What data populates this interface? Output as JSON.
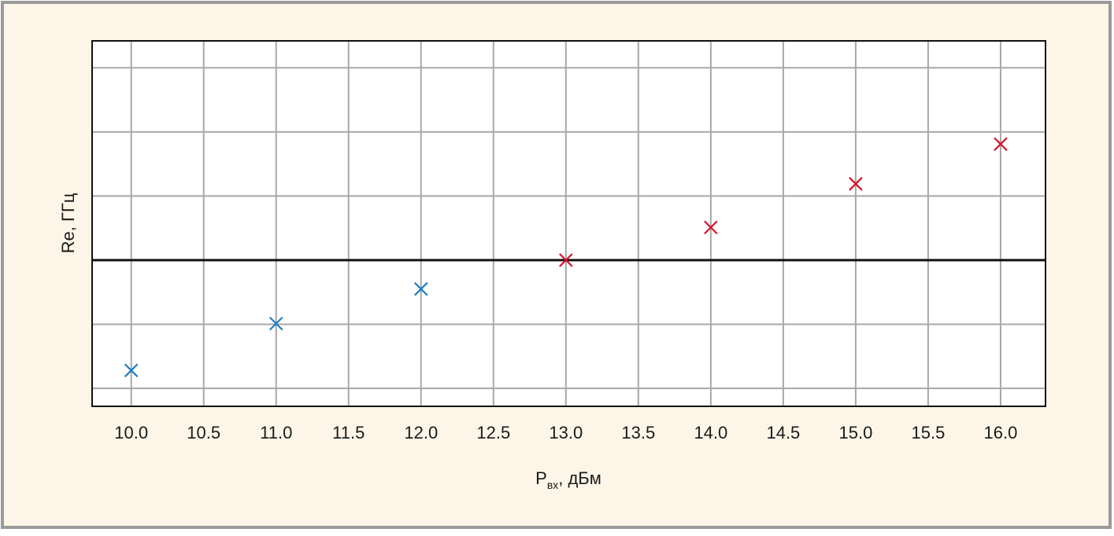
{
  "chart_data": {
    "type": "scatter",
    "x_label": {
      "main": "P",
      "sub": "вх",
      "rest": ", дБм"
    },
    "y_label": "Re, ГГц",
    "series": [
      {
        "color": "#1f7fc4",
        "x": [
          10,
          11,
          12
        ],
        "values": [
          -1.72,
          -0.99,
          -0.45
        ]
      },
      {
        "color": "#d8102c",
        "x": [
          13,
          14,
          15,
          16
        ],
        "values": [
          0,
          0.51,
          1.19,
          1.81
        ]
      }
    ],
    "xlim": [
      9.73,
      16.31
    ],
    "xticks": [
      {
        "value": 10,
        "label": "10.0"
      },
      10.5,
      {
        "value": 11,
        "label": "11.0"
      },
      11.5,
      {
        "value": 12,
        "label": "12.0"
      },
      12.5,
      {
        "value": 13,
        "label": "13.0"
      },
      13.5,
      {
        "value": 14,
        "label": "14.0"
      },
      14.5,
      {
        "value": 15,
        "label": "15.0"
      },
      15.5,
      {
        "value": 16,
        "label": "16.0"
      }
    ],
    "ylim": [
      -2.28,
      3.42
    ],
    "yticks": [
      -2,
      -1,
      0,
      1,
      2,
      3
    ],
    "show_ytick_labels": false,
    "grid": true
  }
}
